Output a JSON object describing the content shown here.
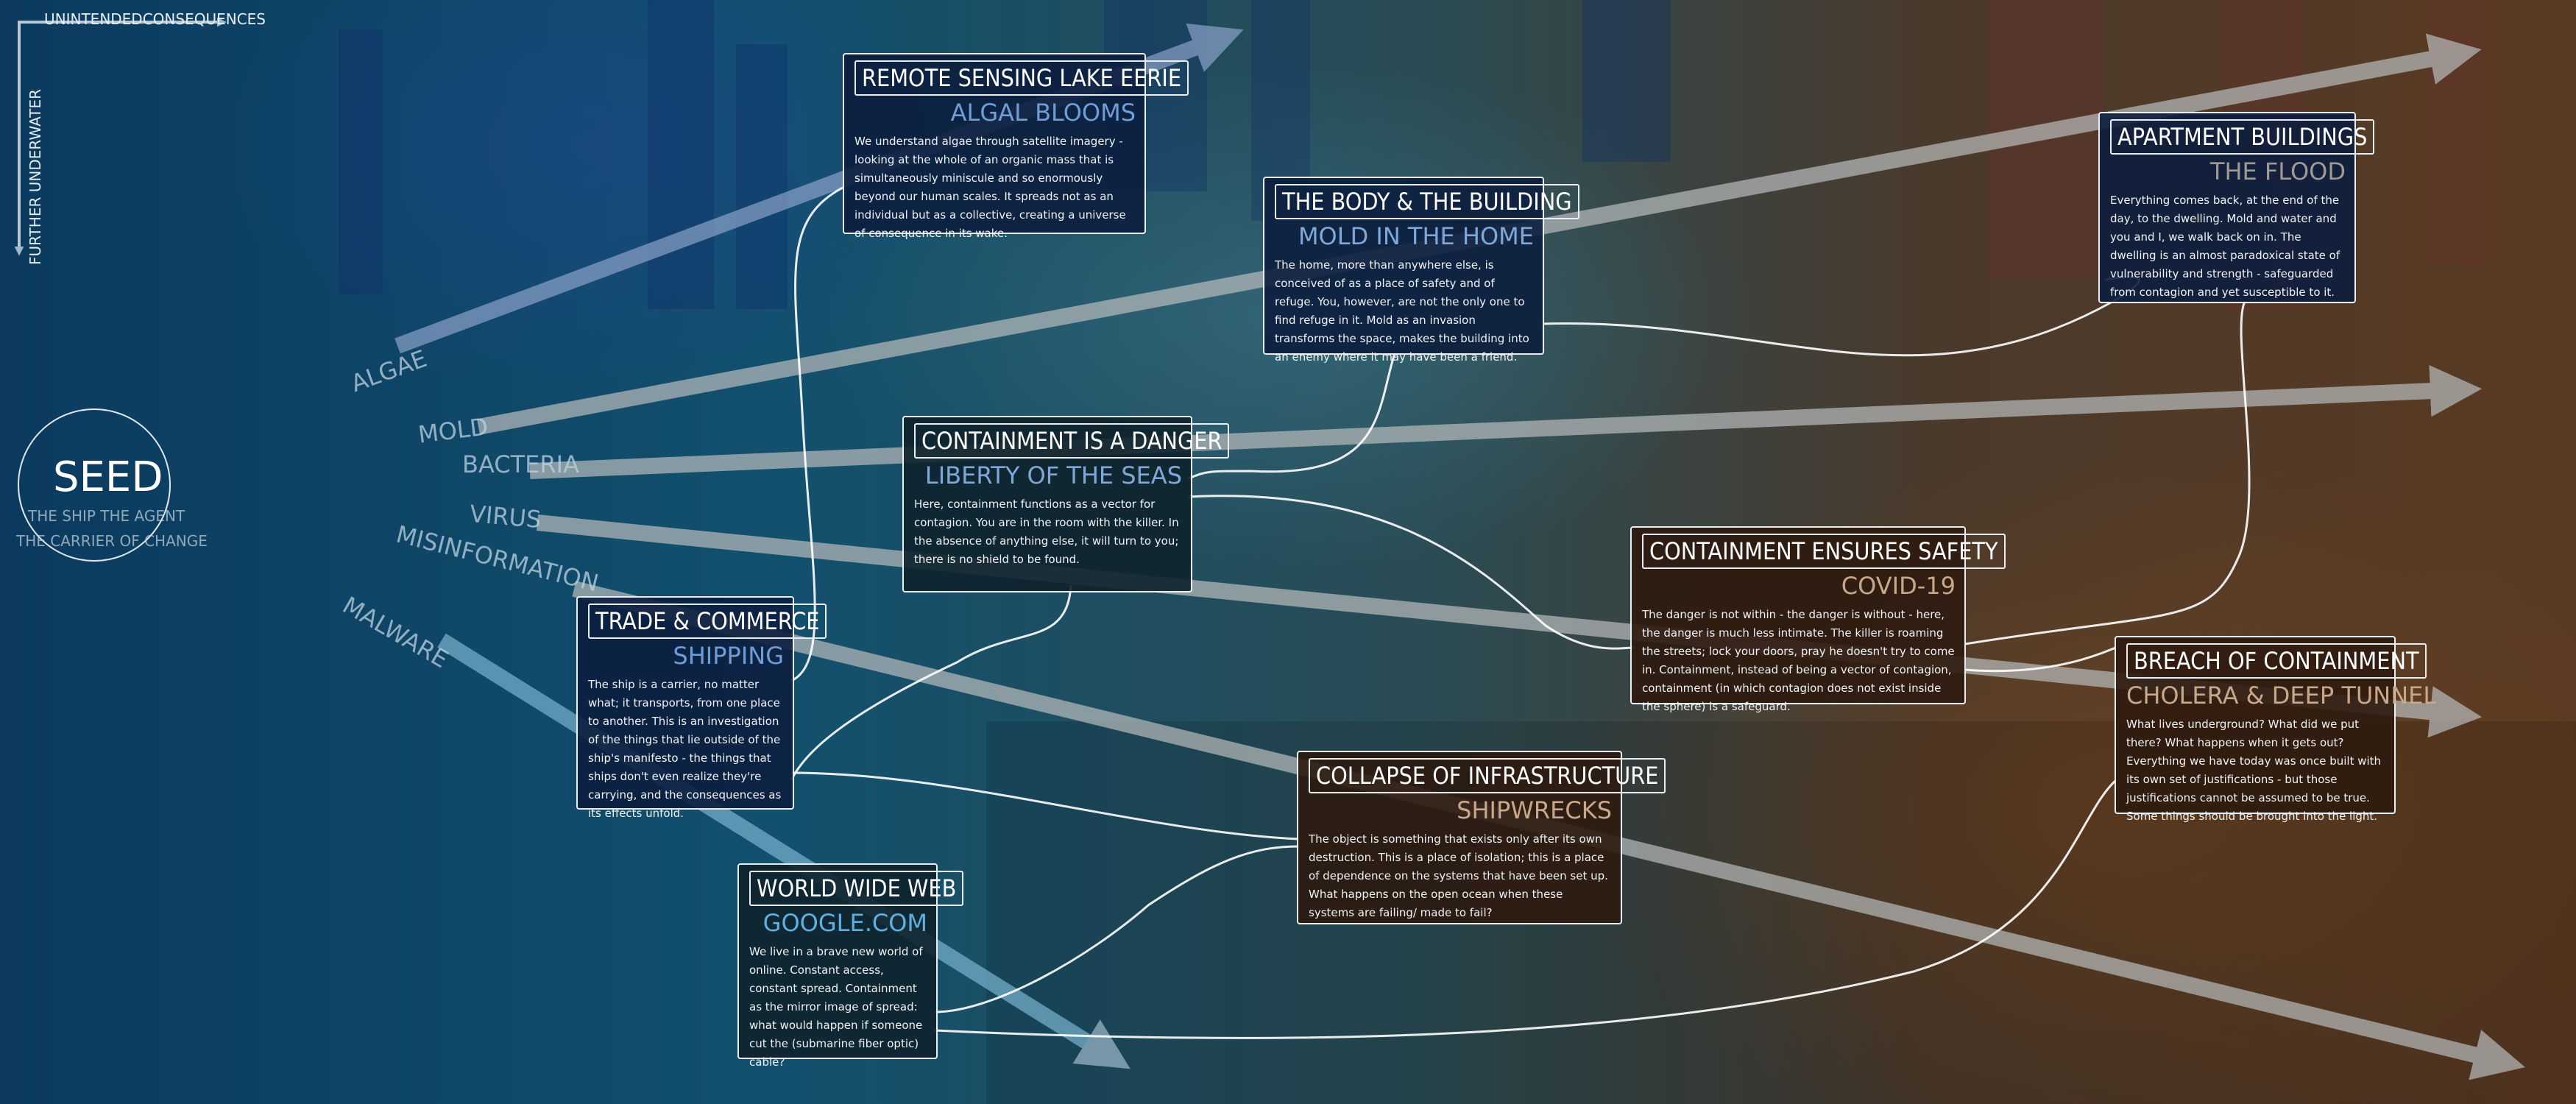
{
  "header": {
    "title": "UNINTENDEDCONSEQUENCES",
    "vertical_label": "FURTHER UNDERWATER"
  },
  "seed": {
    "title": "SEED",
    "line1": "THE SHIP THE AGENT",
    "line2": "THE CARRIER OF CHANGE"
  },
  "agents": [
    "ALGAE",
    "MOLD",
    "BACTERIA",
    "VIRUS",
    "MISINFORMATION",
    "MALWARE"
  ],
  "colors": {
    "blue_sub": "#6f9ed6",
    "teal_sub": "#8fb4cc",
    "brown_sub": "#c8a88a",
    "line": "#ffffff"
  },
  "nodes": {
    "lake_erie": {
      "title": "REMOTE SENSING LAKE EERIE",
      "subtitle": "ALGAL BLOOMS",
      "body": "We understand algae through satellite imagery - looking at the whole of an organic mass that is simultaneously miniscule and so enormously beyond our human scales. It spreads not as an individual but as a collective, creating a universe of consequence in its wake."
    },
    "body_building": {
      "title": "THE BODY & THE BUILDING",
      "subtitle": "MOLD IN THE HOME",
      "body": "The home, more than anywhere else, is conceived of as a place of safety and of refuge. You, however, are not the only one to find refuge in it. Mold as an invasion transforms the space, makes the building into an enemy where it may have been a friend."
    },
    "apartment": {
      "title": "APARTMENT BUILDINGS",
      "subtitle": "THE FLOOD",
      "body": "Everything comes back, at the end of the day, to the dwelling. Mold and water and you and I, we walk back on in. The dwelling is an almost paradoxical state of vulnerability and strength - safeguarded from contagion and yet susceptible to it."
    },
    "containment_danger": {
      "title": "CONTAINMENT IS A DANGER",
      "subtitle": "LIBERTY OF THE SEAS",
      "body": "Here, containment functions as a vector for contagion. You are in the room with the killer. In the absence of anything else, it will turn to you; there is no shield to be found."
    },
    "containment_safety": {
      "title": "CONTAINMENT ENSURES SAFETY",
      "subtitle": "COVID-19",
      "body": "The danger is not within - the danger is without - here, the danger is much less intimate. The killer is roaming the streets; lock your doors, pray he doesn't try to come in. Containment, instead of being a vector of contagion, containment (in which contagion does not exist inside the sphere) is a safeguard."
    },
    "trade": {
      "title": "TRADE & COMMERCE",
      "subtitle": "SHIPPING",
      "body": "The ship is a carrier, no matter what; it transports, from one place to another. This is an investigation of the things that lie outside of the ship's manifesto - the things that ships don't even realize they're carrying, and the consequences as its effects unfold."
    },
    "breach": {
      "title": "BREACH OF CONTAINMENT",
      "subtitle": "CHOLERA & DEEP TUNNEL",
      "body": "What lives underground? What did we put there? What happens when it gets out? Everything we have today was once built with its own set of justifications - but those justifications cannot be assumed to be true. Some things should be brought into the light."
    },
    "collapse": {
      "title": "COLLAPSE OF INFRASTRUCTURE",
      "subtitle": "SHIPWRECKS",
      "body": "The object is something that exists only after its own destruction. This is a place of isolation; this is a place of dependence on the systems that have been set up. What happens on the open ocean when these systems are failing/ made to fail?"
    },
    "www": {
      "title": "WORLD WIDE WEB",
      "subtitle": "GOOGLE.COM",
      "body": "We live in a brave new world of online. Constant access, constant spread. Containment as the mirror image of spread: what would happen if someone cut the (submarine fiber optic) cable?"
    }
  }
}
